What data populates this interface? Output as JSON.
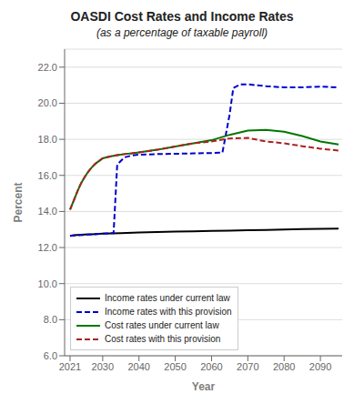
{
  "chart_data": {
    "type": "line",
    "title": "OASDI Cost Rates and Income Rates",
    "subtitle": "(as a percentage of taxable payroll)",
    "xlabel": "Year",
    "ylabel": "Percent",
    "xlim": [
      2019.5,
      2096
    ],
    "xticks": [
      2021,
      2030,
      2040,
      2050,
      2060,
      2070,
      2080,
      2090
    ],
    "ylim": [
      6.0,
      23.0
    ],
    "yticks": [
      {
        "value": 6,
        "label": "6.0"
      },
      {
        "value": 8,
        "label": "8.0"
      },
      {
        "value": 10,
        "label": "10.0"
      },
      {
        "value": 12,
        "label": "12.0"
      },
      {
        "value": 14,
        "label": "14.0"
      },
      {
        "value": 16,
        "label": "16.0"
      },
      {
        "value": 18,
        "label": "18.0"
      },
      {
        "value": 20,
        "label": "20.0"
      },
      {
        "value": 22,
        "label": "22.0"
      }
    ],
    "grid": "y",
    "legend": "lower left",
    "series": [
      {
        "name": "Income rates under current law",
        "color": "#000000",
        "line_style": "solid",
        "x": [
          2021,
          2022,
          2023,
          2024,
          2025,
          2026,
          2027,
          2028,
          2029,
          2030,
          2035,
          2040,
          2045,
          2050,
          2055,
          2060,
          2065,
          2070,
          2075,
          2080,
          2085,
          2090,
          2095
        ],
        "values": [
          12.65,
          12.68,
          12.7,
          12.71,
          12.72,
          12.73,
          12.74,
          12.75,
          12.76,
          12.77,
          12.8,
          12.83,
          12.86,
          12.88,
          12.9,
          12.92,
          12.94,
          12.96,
          12.98,
          13.0,
          13.02,
          13.04,
          13.05
        ]
      },
      {
        "name": "Income rates with this provision",
        "color": "#0000cc",
        "line_style": "dashed",
        "x": [
          2021,
          2025,
          2030,
          2033,
          2034,
          2036,
          2038,
          2040,
          2045,
          2050,
          2055,
          2060,
          2063,
          2065,
          2066,
          2068,
          2070,
          2075,
          2080,
          2085,
          2090,
          2095
        ],
        "values": [
          12.65,
          12.7,
          12.77,
          12.8,
          16.6,
          17.0,
          17.1,
          17.15,
          17.18,
          17.2,
          17.22,
          17.24,
          17.26,
          19.4,
          20.85,
          21.05,
          21.05,
          20.95,
          20.88,
          20.88,
          20.92,
          20.88
        ]
      },
      {
        "name": "Cost rates under current law",
        "color": "#007700",
        "line_style": "solid",
        "x": [
          2021,
          2022,
          2023,
          2024,
          2025,
          2026,
          2027,
          2028,
          2029,
          2030,
          2032,
          2034,
          2036,
          2038,
          2040,
          2045,
          2050,
          2055,
          2060,
          2065,
          2070,
          2075,
          2080,
          2085,
          2090,
          2095
        ],
        "values": [
          14.1,
          14.6,
          15.1,
          15.55,
          15.9,
          16.2,
          16.45,
          16.65,
          16.8,
          16.95,
          17.05,
          17.12,
          17.18,
          17.22,
          17.28,
          17.42,
          17.6,
          17.78,
          17.95,
          18.25,
          18.48,
          18.52,
          18.42,
          18.18,
          17.88,
          17.72
        ]
      },
      {
        "name": "Cost rates with this provision",
        "color": "#aa2222",
        "line_style": "dashed",
        "x": [
          2021,
          2022,
          2023,
          2024,
          2025,
          2026,
          2027,
          2028,
          2029,
          2030,
          2032,
          2034,
          2036,
          2038,
          2040,
          2045,
          2050,
          2055,
          2060,
          2065,
          2070,
          2075,
          2080,
          2085,
          2090,
          2095
        ],
        "values": [
          14.1,
          14.6,
          15.1,
          15.55,
          15.9,
          16.2,
          16.45,
          16.65,
          16.8,
          16.95,
          17.05,
          17.12,
          17.18,
          17.22,
          17.28,
          17.42,
          17.6,
          17.78,
          17.88,
          18.05,
          18.08,
          17.88,
          17.78,
          17.62,
          17.48,
          17.38
        ]
      }
    ]
  }
}
